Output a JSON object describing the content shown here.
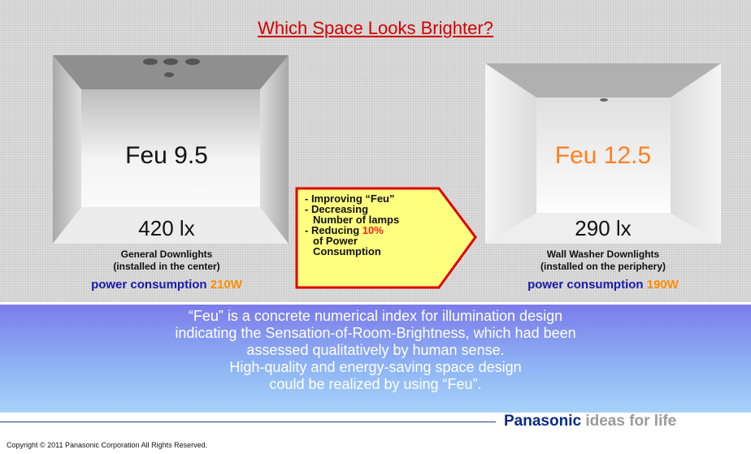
{
  "title": "Which Space Looks Brighter?",
  "left": {
    "feu": "Feu 9.5",
    "lux": "420 lx",
    "caption": [
      "General Downlights",
      "(installed in the center)"
    ],
    "power_label": "power consumption",
    "power_value": "210W"
  },
  "right": {
    "feu": "Feu 12.5",
    "lux": "290 lx",
    "caption": [
      "Wall Washer Downlights",
      "(installed on the periphery)"
    ],
    "power_label": "power consumption",
    "power_value": "190W"
  },
  "arrow": {
    "lines": [
      "- Improving “Feu”",
      "- Decreasing",
      "Number of lamps",
      "- Reducing",
      "10%",
      "of Power",
      "Consumption"
    ]
  },
  "description": [
    "“Feu” is a concrete numerical index for illumination design",
    "indicating the Sensation-of-Room-Brightness, which had been",
    "assessed qualitatively by human sense.",
    "High-quality and energy-saving space design",
    "could be realized by using “Feu”."
  ],
  "footer": {
    "brand": "Panasonic",
    "tagline": "ideas for life",
    "copyright": "Copyright © 2011  Panasonic Corporation All Rights Reserved."
  }
}
